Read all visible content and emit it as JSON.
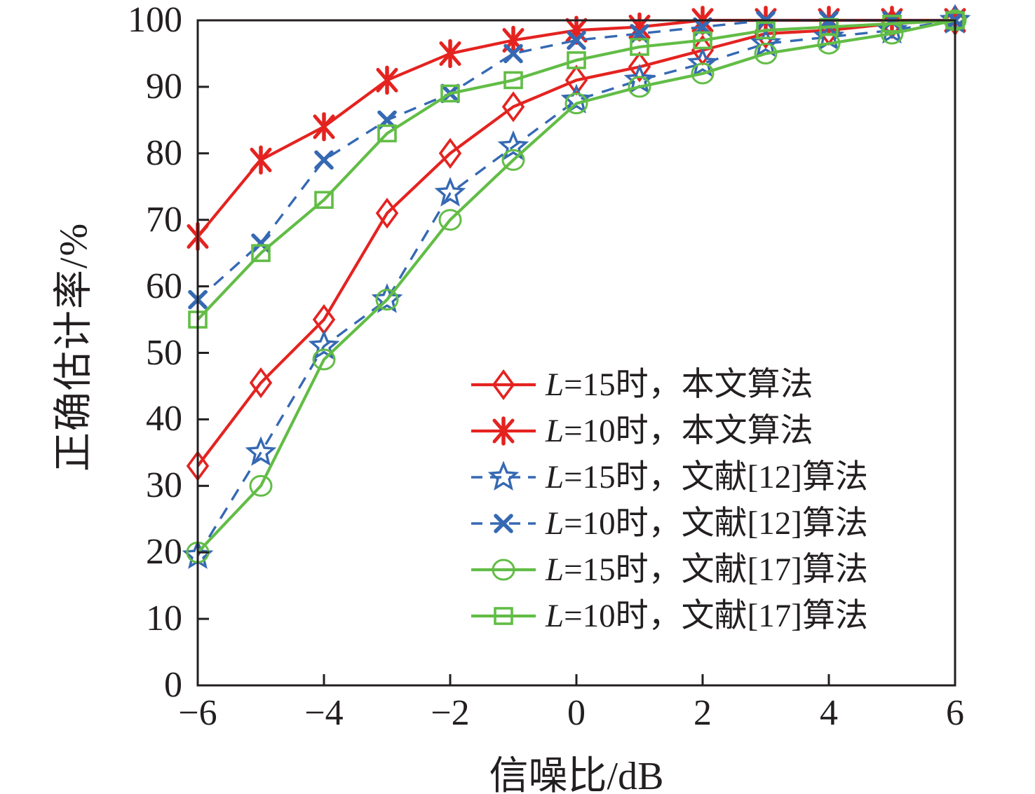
{
  "chart_data": {
    "type": "line",
    "title": "",
    "xlabel": "信噪比/dB",
    "ylabel": "正确估计率/%",
    "xlim": [
      -6,
      6
    ],
    "ylim": [
      0,
      100
    ],
    "xticks": [
      -6,
      -4,
      -2,
      0,
      2,
      4,
      6
    ],
    "yticks": [
      0,
      10,
      20,
      30,
      40,
      50,
      60,
      70,
      80,
      90,
      100
    ],
    "grid": false,
    "legend_position": "inside lower right, no frame",
    "x": [
      -6,
      -5,
      -4,
      -3,
      -2,
      -1,
      0,
      1,
      2,
      3,
      4,
      5,
      6
    ],
    "series": [
      {
        "name": "L=15时，本文算法",
        "color": "#e42320",
        "line": "solid",
        "marker": "diamond",
        "values": [
          33,
          45.5,
          55,
          71,
          80,
          87,
          91,
          93,
          95.5,
          98,
          98.5,
          99.5,
          100
        ]
      },
      {
        "name": "L=10时，本文算法",
        "color": "#e42320",
        "line": "solid",
        "marker": "asterisk",
        "values": [
          67.5,
          79,
          84,
          91,
          95,
          97,
          98.5,
          99,
          100,
          100,
          100,
          100,
          100
        ]
      },
      {
        "name": "L=15时，文献[12]算法",
        "color": "#3569b3",
        "line": "dashed",
        "marker": "star",
        "values": [
          19.5,
          35,
          51,
          58,
          74,
          81,
          88,
          91,
          93.5,
          96.5,
          97.5,
          98.5,
          100
        ]
      },
      {
        "name": "L=10时，文献[12]算法",
        "color": "#3569b3",
        "line": "dashed",
        "marker": "x",
        "values": [
          58,
          66.5,
          79,
          85,
          89,
          95,
          97,
          98,
          99,
          100,
          100,
          100,
          100
        ]
      },
      {
        "name": "L=15时，文献[17]算法",
        "color": "#62bd46",
        "line": "solid",
        "marker": "circle",
        "values": [
          20,
          30,
          49,
          58,
          70,
          79,
          87.5,
          90,
          92,
          95,
          96.5,
          98,
          100
        ]
      },
      {
        "name": "L=10时，文献[17]算法",
        "color": "#62bd46",
        "line": "solid",
        "marker": "square",
        "values": [
          55,
          65,
          73,
          83,
          89,
          91,
          94,
          96,
          97,
          98.5,
          99,
          99.5,
          100
        ]
      }
    ],
    "axis_color": "#231f20"
  }
}
